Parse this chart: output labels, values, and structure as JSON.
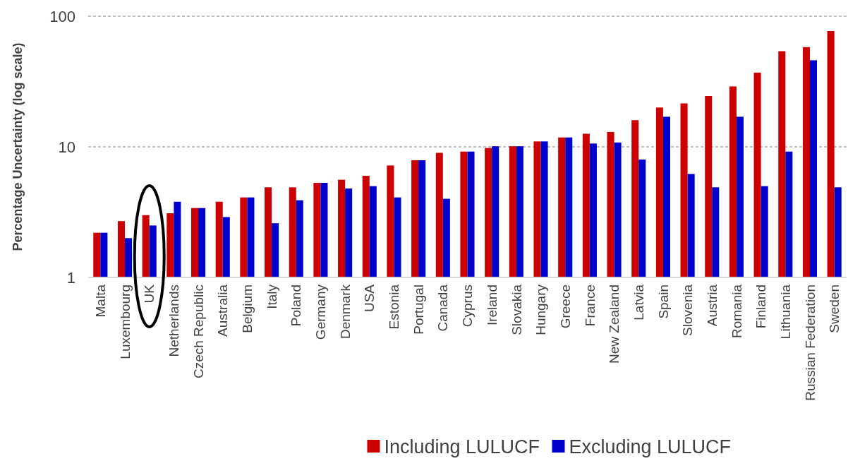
{
  "chart_data": {
    "type": "bar",
    "ylabel": "Percentage Uncertainty (log scale)",
    "log": "y",
    "ylim": [
      1,
      100
    ],
    "yticks": [
      1,
      10,
      100
    ],
    "grid": "y",
    "legend": "bottom",
    "categories": [
      "Malta",
      "Luxembourg",
      "UK",
      "Netherlands",
      "Czech Republic",
      "Australia",
      "Belgium",
      "Italy",
      "Poland",
      "Germany",
      "Denmark",
      "USA",
      "Estonia",
      "Portugal",
      "Canada",
      "Cyprus",
      "Ireland",
      "Slovakia",
      "Hungary",
      "Greece",
      "France",
      "New Zealand",
      "Latvia",
      "Spain",
      "Slovenia",
      "Austria",
      "Romania",
      "Finland",
      "Lithuania",
      "Russian Federation",
      "Sweden"
    ],
    "series": [
      {
        "name": "Including LULUCF",
        "color": "#cc0000",
        "values": [
          2.2,
          2.7,
          3.0,
          3.1,
          3.4,
          3.8,
          4.1,
          4.9,
          4.9,
          5.3,
          5.6,
          6.0,
          7.2,
          7.9,
          9.0,
          9.2,
          9.8,
          10.1,
          11,
          11.8,
          12.6,
          13,
          16,
          20,
          21.5,
          24.5,
          29,
          37,
          54,
          58,
          77
        ]
      },
      {
        "name": "Excluding LULUCF",
        "color": "#0000cc",
        "values": [
          2.2,
          2.0,
          2.5,
          3.8,
          3.4,
          2.9,
          4.1,
          2.6,
          3.9,
          5.3,
          4.8,
          5.0,
          4.1,
          7.9,
          4.0,
          9.2,
          10.1,
          10.1,
          11,
          11.8,
          10.6,
          10.8,
          8.0,
          17,
          6.2,
          4.9,
          17,
          5.0,
          9.2,
          46,
          4.9
        ]
      }
    ]
  }
}
